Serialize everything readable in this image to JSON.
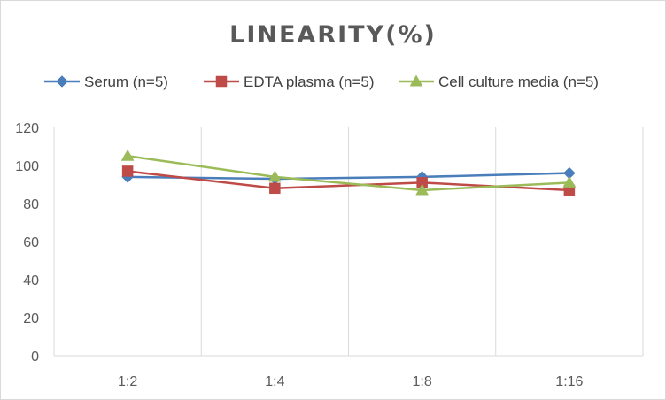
{
  "chart_data": {
    "type": "line",
    "title": "LINEARITY(%)",
    "xlabel": "",
    "ylabel": "",
    "categories": [
      "1:2",
      "1:4",
      "1:8",
      "1:16"
    ],
    "ylim": [
      0,
      120
    ],
    "yticks": [
      0,
      20,
      40,
      60,
      80,
      100,
      120
    ],
    "grid": "vertical",
    "legend_position": "top",
    "series": [
      {
        "name": "Serum (n=5)",
        "values": [
          94,
          93,
          94,
          96
        ],
        "color": "#4a7ebb",
        "marker": "diamond"
      },
      {
        "name": "EDTA plasma (n=5)",
        "values": [
          97,
          88,
          91,
          87
        ],
        "color": "#be4b48",
        "marker": "square"
      },
      {
        "name": "Cell culture media (n=5)",
        "values": [
          105,
          94,
          87,
          91
        ],
        "color": "#9bbb59",
        "marker": "triangle"
      }
    ]
  }
}
